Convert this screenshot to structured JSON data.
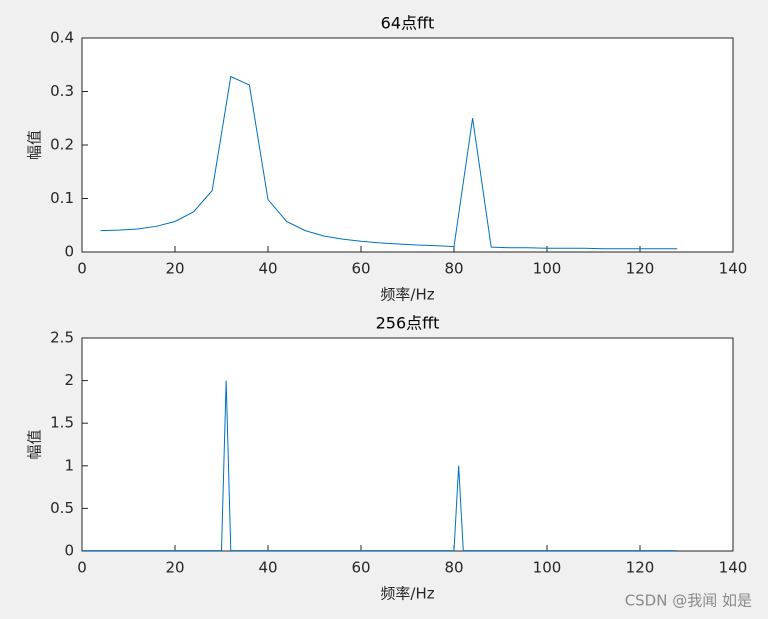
{
  "chart_data": [
    {
      "type": "line",
      "title": "64点fft",
      "x_label": "频率/Hz",
      "y_label": "幅值",
      "xlim": [
        0,
        140
      ],
      "xticks": [
        0,
        20,
        40,
        60,
        80,
        100,
        120,
        140
      ],
      "ylim": [
        0,
        0.4
      ],
      "yticks": [
        0,
        0.1,
        0.2,
        0.3,
        0.4
      ],
      "x": [
        4,
        8,
        12,
        16,
        20,
        24,
        28,
        32,
        36,
        40,
        44,
        48,
        52,
        56,
        60,
        64,
        68,
        72,
        76,
        80,
        84,
        88,
        92,
        96,
        100,
        104,
        108,
        112,
        116,
        120,
        124,
        128
      ],
      "series": [
        {
          "color": "#0072bd",
          "values": [
            0.04,
            0.041,
            0.043,
            0.048,
            0.057,
            0.075,
            0.115,
            0.328,
            0.312,
            0.098,
            0.057,
            0.04,
            0.03,
            0.024,
            0.02,
            0.017,
            0.015,
            0.013,
            0.012,
            0.01,
            0.25,
            0.009,
            0.008,
            0.008,
            0.007,
            0.007,
            0.007,
            0.006,
            0.006,
            0.006,
            0.006,
            0.006
          ]
        }
      ]
    },
    {
      "type": "line",
      "title": "256点fft",
      "x_label": "频率/Hz",
      "y_label": "幅值",
      "xlim": [
        0,
        140
      ],
      "xticks": [
        0,
        20,
        40,
        60,
        80,
        100,
        120,
        140
      ],
      "ylim": [
        0,
        2.5
      ],
      "yticks": [
        0,
        0.5,
        1,
        1.5,
        2,
        2.5
      ],
      "x": [
        0,
        30,
        31,
        32,
        80,
        81,
        82,
        128
      ],
      "series": [
        {
          "color": "#0072bd",
          "values": [
            0.005,
            0.005,
            2,
            0.005,
            0.005,
            1,
            0.005,
            0.005
          ]
        }
      ]
    }
  ],
  "watermark": "CSDN @我闻 如是"
}
